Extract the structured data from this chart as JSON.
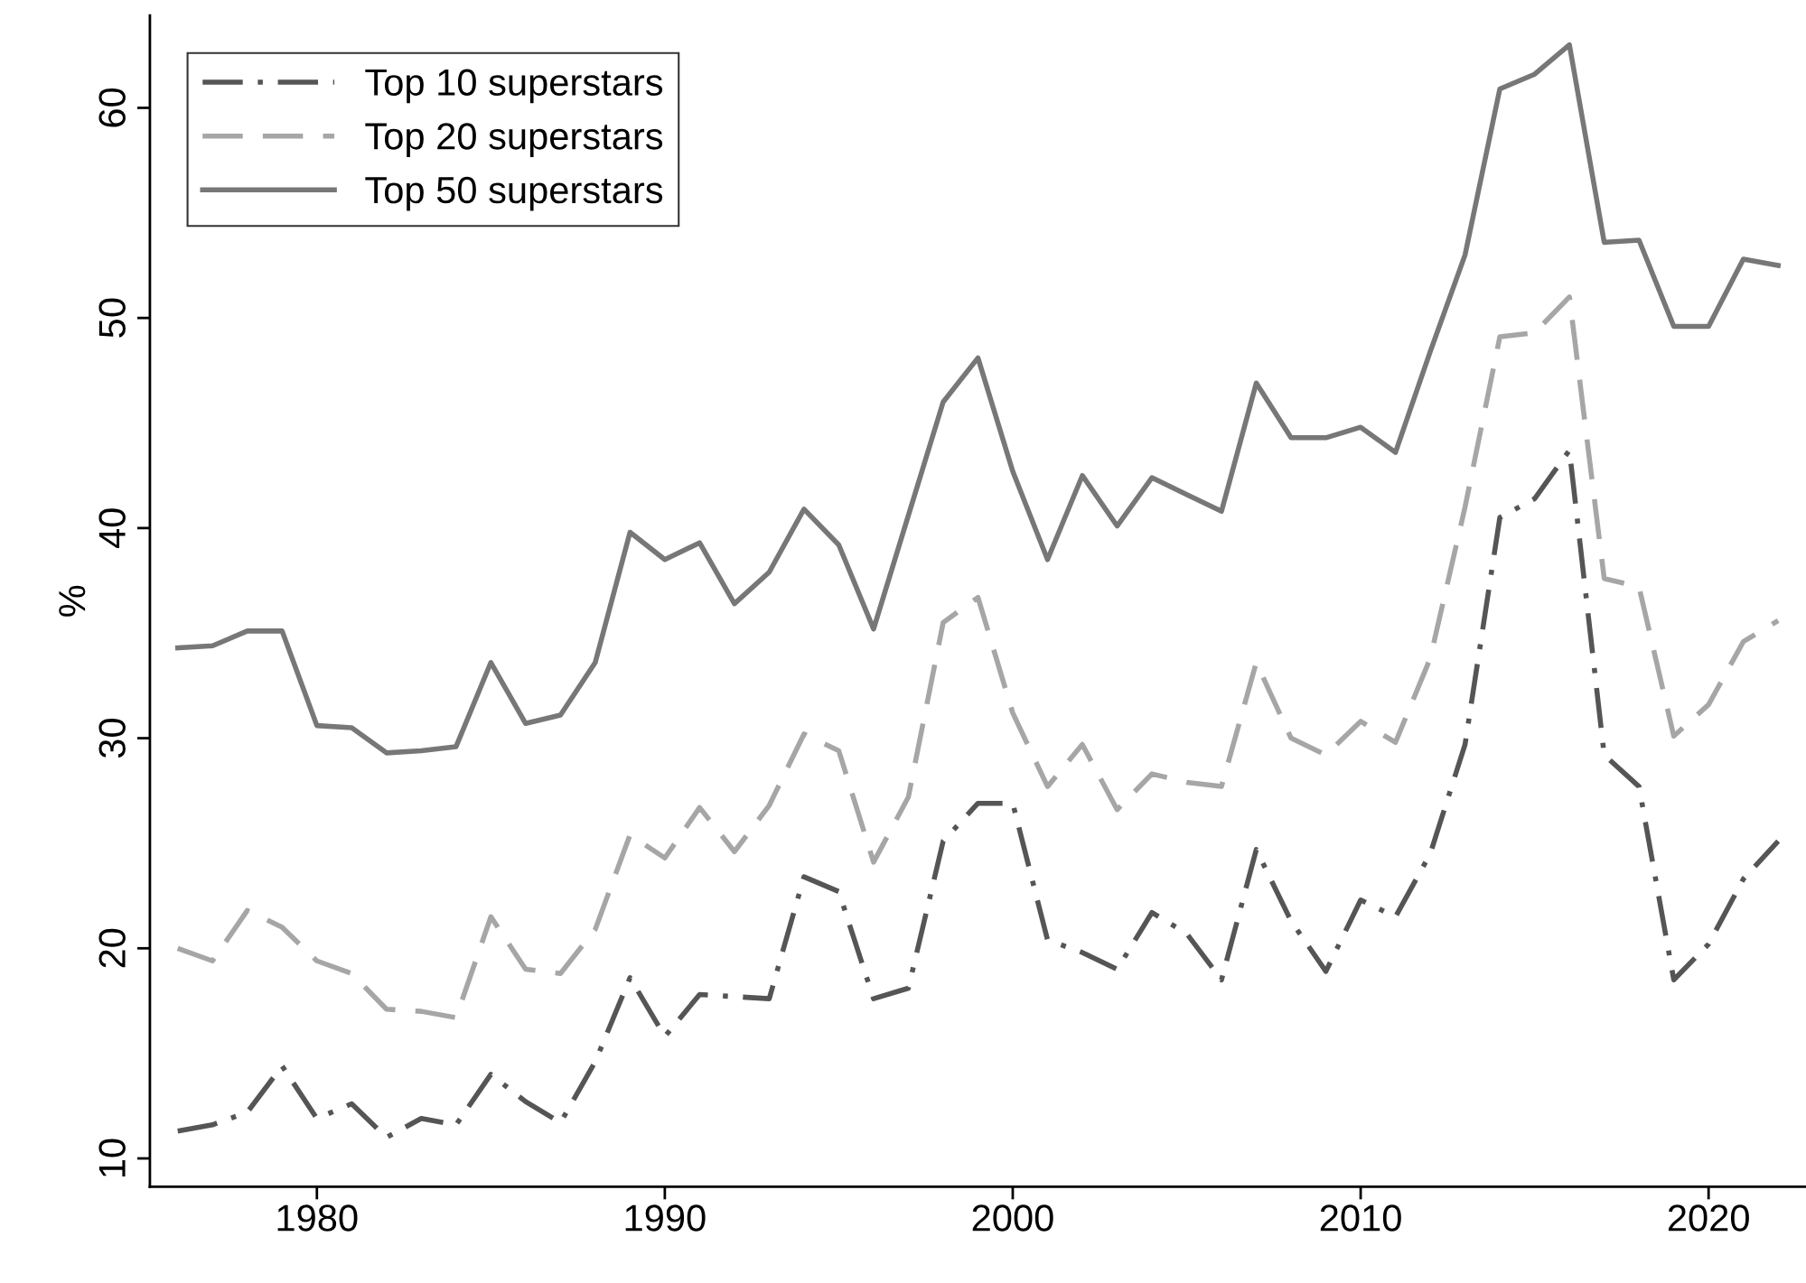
{
  "chart_data": {
    "type": "line",
    "ylabel": "%",
    "x": [
      1976,
      1977,
      1978,
      1979,
      1980,
      1981,
      1982,
      1983,
      1984,
      1985,
      1986,
      1987,
      1988,
      1989,
      1990,
      1991,
      1992,
      1993,
      1994,
      1995,
      1996,
      1997,
      1998,
      1999,
      2000,
      2001,
      2002,
      2003,
      2004,
      2005,
      2006,
      2007,
      2008,
      2009,
      2010,
      2011,
      2012,
      2013,
      2014,
      2015,
      2016,
      2017,
      2018,
      2019,
      2020,
      2021,
      2022
    ],
    "series": [
      {
        "name": "Top 10 superstars",
        "color": "#555555",
        "line_style": "dashdot",
        "values": [
          11.3,
          11.6,
          12.2,
          14.4,
          11.9,
          12.6,
          11.0,
          11.9,
          11.6,
          14.0,
          12.7,
          11.7,
          14.6,
          18.6,
          15.8,
          17.8,
          17.7,
          17.6,
          23.4,
          22.7,
          17.6,
          18.1,
          25.1,
          26.9,
          26.9,
          20.4,
          19.8,
          19.0,
          21.7,
          20.7,
          18.5,
          24.7,
          21.3,
          18.9,
          22.3,
          21.5,
          24.5,
          29.7,
          40.5,
          41.4,
          43.7,
          29.2,
          27.7,
          18.5,
          20.2,
          23.3,
          25.1
        ]
      },
      {
        "name": "Top 20 superstars",
        "color": "#a6a6a6",
        "line_style": "dashed",
        "values": [
          20.0,
          19.4,
          21.8,
          21.0,
          19.4,
          18.8,
          17.1,
          17.0,
          16.7,
          21.5,
          19.0,
          18.8,
          20.9,
          25.4,
          24.3,
          26.7,
          24.6,
          26.8,
          30.2,
          29.4,
          24.1,
          27.2,
          35.5,
          36.7,
          31.2,
          27.7,
          29.7,
          26.6,
          28.3,
          27.9,
          27.7,
          33.6,
          30.0,
          29.2,
          30.8,
          29.8,
          33.8,
          41.0,
          49.1,
          49.3,
          51.0,
          37.6,
          37.2,
          30.1,
          31.6,
          34.6,
          35.6
        ]
      },
      {
        "name": "Top 50 superstars",
        "color": "#777777",
        "line_style": "solid",
        "values": [
          34.3,
          34.4,
          35.1,
          35.1,
          30.6,
          30.5,
          29.3,
          29.4,
          29.6,
          33.6,
          30.7,
          31.1,
          33.6,
          39.8,
          38.5,
          39.3,
          36.4,
          37.9,
          40.9,
          39.2,
          35.2,
          40.6,
          46.0,
          48.1,
          42.7,
          38.5,
          42.5,
          40.1,
          42.4,
          41.6,
          40.8,
          46.9,
          44.3,
          44.3,
          44.8,
          43.6,
          48.4,
          53.0,
          60.9,
          61.6,
          63.0,
          53.6,
          53.7,
          49.6,
          49.6,
          52.8,
          52.5
        ]
      }
    ],
    "xlim": [
      1975.2,
      2022.8
    ],
    "xticks": [
      1980,
      1990,
      2000,
      2010,
      2020
    ],
    "ylim": [
      8.65,
      64.4
    ],
    "yticks": [
      10,
      20,
      30,
      40,
      50,
      60
    ],
    "grid": false,
    "legend": "top left",
    "marker": "none"
  }
}
